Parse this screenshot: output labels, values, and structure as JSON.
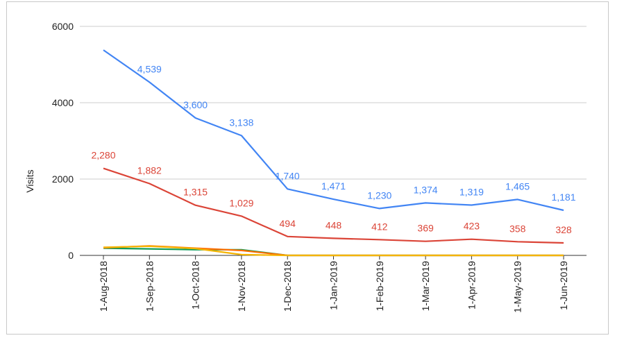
{
  "chart_data": {
    "type": "line",
    "categories": [
      "1-Aug-2018",
      "1-Sep-2018",
      "1-Oct-2018",
      "1-Nov-2018",
      "1-Dec-2018",
      "1-Jan-2019",
      "1-Feb-2019",
      "1-Mar-2019",
      "1-Apr-2019",
      "1-May-2019",
      "1-Jun-2019"
    ],
    "ylabel": "Visits",
    "ylim": [
      0,
      6000
    ],
    "yticks": [
      0,
      2000,
      4000,
      6000
    ],
    "ytick_labels": [
      "0",
      "2000",
      "4000",
      "6000"
    ],
    "grid": true,
    "series": [
      {
        "color": "#4285f4",
        "values": [
          5380,
          4539,
          3600,
          3138,
          1740,
          1471,
          1230,
          1374,
          1319,
          1465,
          1181
        ],
        "data_labels": [
          null,
          "4,539",
          "3,600",
          "3,138",
          "1,740",
          "1,471",
          "1,230",
          "1,374",
          "1,319",
          "1,465",
          "1,181"
        ]
      },
      {
        "color": "#db4437",
        "values": [
          2280,
          1882,
          1315,
          1029,
          494,
          448,
          412,
          369,
          423,
          358,
          328
        ],
        "data_labels": [
          "2,280",
          "1,882",
          "1,315",
          "1,029",
          "494",
          "448",
          "412",
          "369",
          "423",
          "358",
          "328"
        ]
      },
      {
        "color": "#f4b400",
        "values": [
          210,
          240,
          180,
          20,
          0,
          0,
          0,
          0,
          0,
          0,
          0
        ],
        "data_labels": []
      },
      {
        "color": "#ff6d00",
        "values": [
          200,
          250,
          190,
          130,
          0,
          0,
          0,
          0,
          0,
          0,
          0
        ],
        "data_labels": []
      },
      {
        "color": "#0f9d58",
        "values": [
          190,
          170,
          150,
          150,
          0,
          0,
          0,
          0,
          0,
          0,
          0
        ],
        "data_labels": []
      }
    ]
  }
}
